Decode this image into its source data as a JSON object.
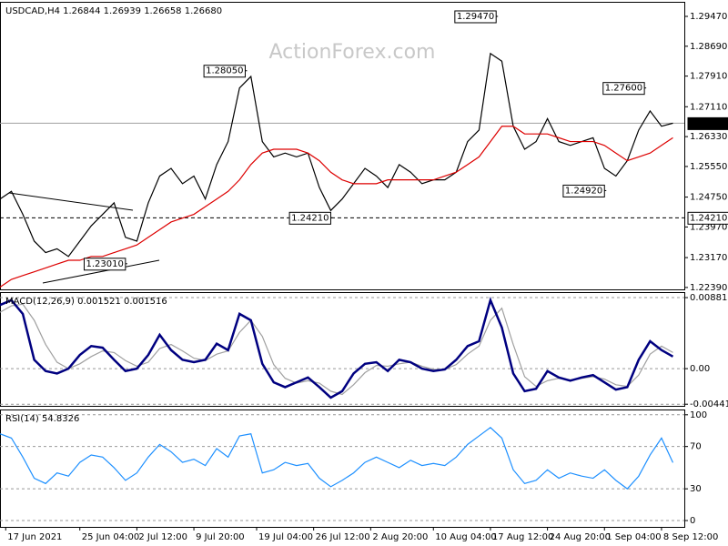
{
  "chart_data": [
    {
      "type": "line",
      "title": "USDCAD,H4 1.26844 1.26939 1.26658 1.26680",
      "watermark": "ActionForex.com",
      "xlim": [
        0,
        120
      ],
      "ylim": [
        1.2234,
        1.2985
      ],
      "yticks": [
        {
          "value": 1.2947,
          "label": "1.29470"
        },
        {
          "value": 1.2869,
          "label": "1.28690"
        },
        {
          "value": 1.2791,
          "label": "1.27910"
        },
        {
          "value": 1.2711,
          "label": "1.27110"
        },
        {
          "value": 1.2633,
          "label": "1.26330"
        },
        {
          "value": 1.2555,
          "label": "1.25550"
        },
        {
          "value": 1.2475,
          "label": "1.24750"
        },
        {
          "value": 1.2397,
          "label": "1.23970"
        },
        {
          "value": 1.2317,
          "label": "1.23170"
        },
        {
          "value": 1.2239,
          "label": "1.22390"
        }
      ],
      "x": [
        0,
        2,
        4,
        6,
        8,
        10,
        12,
        14,
        16,
        18,
        20,
        22,
        24,
        26,
        28,
        30,
        32,
        34,
        36,
        38,
        40,
        42,
        44,
        46,
        48,
        50,
        52,
        54,
        56,
        58,
        60,
        62,
        64,
        66,
        68,
        70,
        72,
        74,
        76,
        78,
        80,
        82,
        84,
        86,
        88,
        90,
        92,
        94,
        96,
        98,
        100,
        102,
        104,
        106,
        108,
        110,
        112,
        114,
        116,
        118
      ],
      "series": [
        {
          "color": "#000000",
          "values": [
            1.247,
            1.249,
            1.243,
            1.236,
            1.233,
            1.234,
            1.232,
            1.236,
            1.24,
            1.243,
            1.246,
            1.237,
            1.236,
            1.246,
            1.253,
            1.255,
            1.251,
            1.253,
            1.247,
            1.256,
            1.262,
            1.276,
            1.279,
            1.262,
            1.258,
            1.259,
            1.258,
            1.259,
            1.25,
            1.244,
            1.247,
            1.251,
            1.255,
            1.253,
            1.25,
            1.256,
            1.254,
            1.251,
            1.252,
            1.252,
            1.254,
            1.262,
            1.265,
            1.285,
            1.283,
            1.266,
            1.26,
            1.262,
            1.268,
            1.262,
            1.261,
            1.262,
            1.263,
            1.255,
            1.253,
            1.257,
            1.265,
            1.27,
            1.266,
            1.2668
          ]
        },
        {
          "color": "#dd0000",
          "values": [
            1.224,
            1.226,
            1.227,
            1.228,
            1.229,
            1.23,
            1.231,
            1.231,
            1.232,
            1.232,
            1.233,
            1.234,
            1.235,
            1.237,
            1.239,
            1.241,
            1.242,
            1.243,
            1.245,
            1.247,
            1.249,
            1.252,
            1.256,
            1.259,
            1.26,
            1.26,
            1.26,
            1.259,
            1.257,
            1.254,
            1.252,
            1.251,
            1.251,
            1.251,
            1.252,
            1.252,
            1.252,
            1.252,
            1.252,
            1.253,
            1.254,
            1.256,
            1.258,
            1.262,
            1.266,
            1.266,
            1.264,
            1.264,
            1.264,
            1.263,
            1.262,
            1.262,
            1.262,
            1.261,
            1.259,
            1.257,
            1.258,
            1.259,
            1.261,
            1.263
          ]
        }
      ],
      "annotations": [
        {
          "x": 22,
          "value": 1.2301,
          "label": "1.23010"
        },
        {
          "x": 43,
          "value": 1.2805,
          "label": "1.28050"
        },
        {
          "x": 58,
          "value": 1.2421,
          "label": "1.24210"
        },
        {
          "x": 87,
          "value": 1.2947,
          "label": "1.29470"
        },
        {
          "x": 106,
          "value": 1.2492,
          "label": "1.24920"
        },
        {
          "x": 113,
          "value": 1.276,
          "label": "1.27600"
        }
      ],
      "current_price": {
        "value": 1.2668,
        "label": "1.26680"
      },
      "support": {
        "value": 1.2421,
        "label": "1.24210"
      }
    },
    {
      "type": "line",
      "title": "MACD(12,26,9) 0.001521 0.001516",
      "xlim": [
        0,
        120
      ],
      "ylim": [
        -0.00462,
        0.0095
      ],
      "yticks": [
        0.008816,
        {
          "value": 0,
          "label": "0.00"
        },
        -0.004416
      ],
      "grid": true,
      "x": [
        0,
        2,
        4,
        6,
        8,
        10,
        12,
        14,
        16,
        18,
        20,
        22,
        24,
        26,
        28,
        30,
        32,
        34,
        36,
        38,
        40,
        42,
        44,
        46,
        48,
        50,
        52,
        54,
        56,
        58,
        60,
        62,
        64,
        66,
        68,
        70,
        72,
        74,
        76,
        78,
        80,
        82,
        84,
        86,
        88,
        90,
        92,
        94,
        96,
        98,
        100,
        102,
        104,
        106,
        108,
        110,
        112,
        114,
        116,
        118
      ],
      "series": [
        {
          "color": "#a0a0a0",
          "values": [
            0.007,
            0.0078,
            0.008,
            0.006,
            0.003,
            0.0008,
            0.0,
            0.0006,
            0.0015,
            0.0022,
            0.002,
            0.001,
            0.0003,
            0.0008,
            0.0025,
            0.003,
            0.0022,
            0.0013,
            0.001,
            0.0018,
            0.0022,
            0.0045,
            0.006,
            0.004,
            0.0005,
            -0.0012,
            -0.0018,
            -0.0015,
            -0.0018,
            -0.0028,
            -0.0032,
            -0.002,
            -0.0005,
            0.0004,
            0.0003,
            0.0006,
            0.0008,
            0.0003,
            -0.0001,
            -0.0001,
            0.0005,
            0.0018,
            0.0028,
            0.006,
            0.0075,
            0.003,
            -0.001,
            -0.0022,
            -0.0015,
            -0.0012,
            -0.0014,
            -0.0012,
            -0.001,
            -0.0013,
            -0.002,
            -0.0022,
            -0.0008,
            0.0018,
            0.0028,
            0.002
          ]
        },
        {
          "color": "#000080",
          "values": [
            0.0079,
            0.0085,
            0.0068,
            0.0011,
            -0.0003,
            -0.0006,
            0.0,
            0.0017,
            0.0028,
            0.0026,
            0.0011,
            -0.0003,
            0.0,
            0.0017,
            0.0042,
            0.0023,
            0.0011,
            0.0008,
            0.0011,
            0.0031,
            0.0023,
            0.0068,
            0.006,
            0.0006,
            -0.0017,
            -0.0023,
            -0.0017,
            -0.0011,
            -0.0023,
            -0.0036,
            -0.0028,
            -0.0006,
            0.0006,
            0.0008,
            -0.0003,
            0.0011,
            0.0008,
            0.0,
            -0.0003,
            -0.0001,
            0.0011,
            0.0028,
            0.0034,
            0.0085,
            0.0051,
            -0.0006,
            -0.0028,
            -0.0025,
            -0.0003,
            -0.0011,
            -0.0015,
            -0.0011,
            -0.0008,
            -0.0017,
            -0.0026,
            -0.0023,
            0.0011,
            0.0034,
            0.0023,
            0.0015
          ]
        }
      ]
    },
    {
      "type": "line",
      "title": "RSI(14) 54.8326",
      "xlim": [
        0,
        120
      ],
      "ylim": [
        -6,
        105
      ],
      "yticks": [
        100,
        70,
        30,
        0
      ],
      "grid": true,
      "x": [
        0,
        2,
        4,
        6,
        8,
        10,
        12,
        14,
        16,
        18,
        20,
        22,
        24,
        26,
        28,
        30,
        32,
        34,
        36,
        38,
        40,
        42,
        44,
        46,
        48,
        50,
        52,
        54,
        56,
        58,
        60,
        62,
        64,
        66,
        68,
        70,
        72,
        74,
        76,
        78,
        80,
        82,
        84,
        86,
        88,
        90,
        92,
        94,
        96,
        98,
        100,
        102,
        104,
        106,
        108,
        110,
        112,
        114,
        116,
        118
      ],
      "series": [
        {
          "color": "#1e90ff",
          "values": [
            82,
            78,
            60,
            40,
            35,
            45,
            42,
            55,
            62,
            60,
            50,
            38,
            45,
            60,
            72,
            65,
            55,
            58,
            52,
            68,
            60,
            80,
            82,
            45,
            48,
            55,
            52,
            54,
            40,
            32,
            38,
            45,
            55,
            60,
            55,
            50,
            57,
            52,
            54,
            52,
            60,
            72,
            80,
            88,
            78,
            48,
            35,
            38,
            48,
            40,
            45,
            42,
            40,
            48,
            38,
            30,
            42,
            62,
            78,
            54.8
          ]
        }
      ],
      "xticks": [
        {
          "value": 1,
          "label": "17 Jun 2021"
        },
        {
          "value": 14,
          "label": "25 Jun 04:00"
        },
        {
          "value": 24,
          "label": "2 Jul 12:00"
        },
        {
          "value": 34,
          "label": "9 Jul 20:00"
        },
        {
          "value": 45,
          "label": "19 Jul 04:00"
        },
        {
          "value": 55,
          "label": "26 Jul 12:00"
        },
        {
          "value": 65,
          "label": "2 Aug 20:00"
        },
        {
          "value": 76,
          "label": "10 Aug 04:00"
        },
        {
          "value": 86,
          "label": "17 Aug 12:00"
        },
        {
          "value": 96,
          "label": "24 Aug 20:00"
        },
        {
          "value": 106,
          "label": "1 Sep 04:00"
        },
        {
          "value": 116,
          "label": "8 Sep 12:00"
        }
      ]
    }
  ]
}
